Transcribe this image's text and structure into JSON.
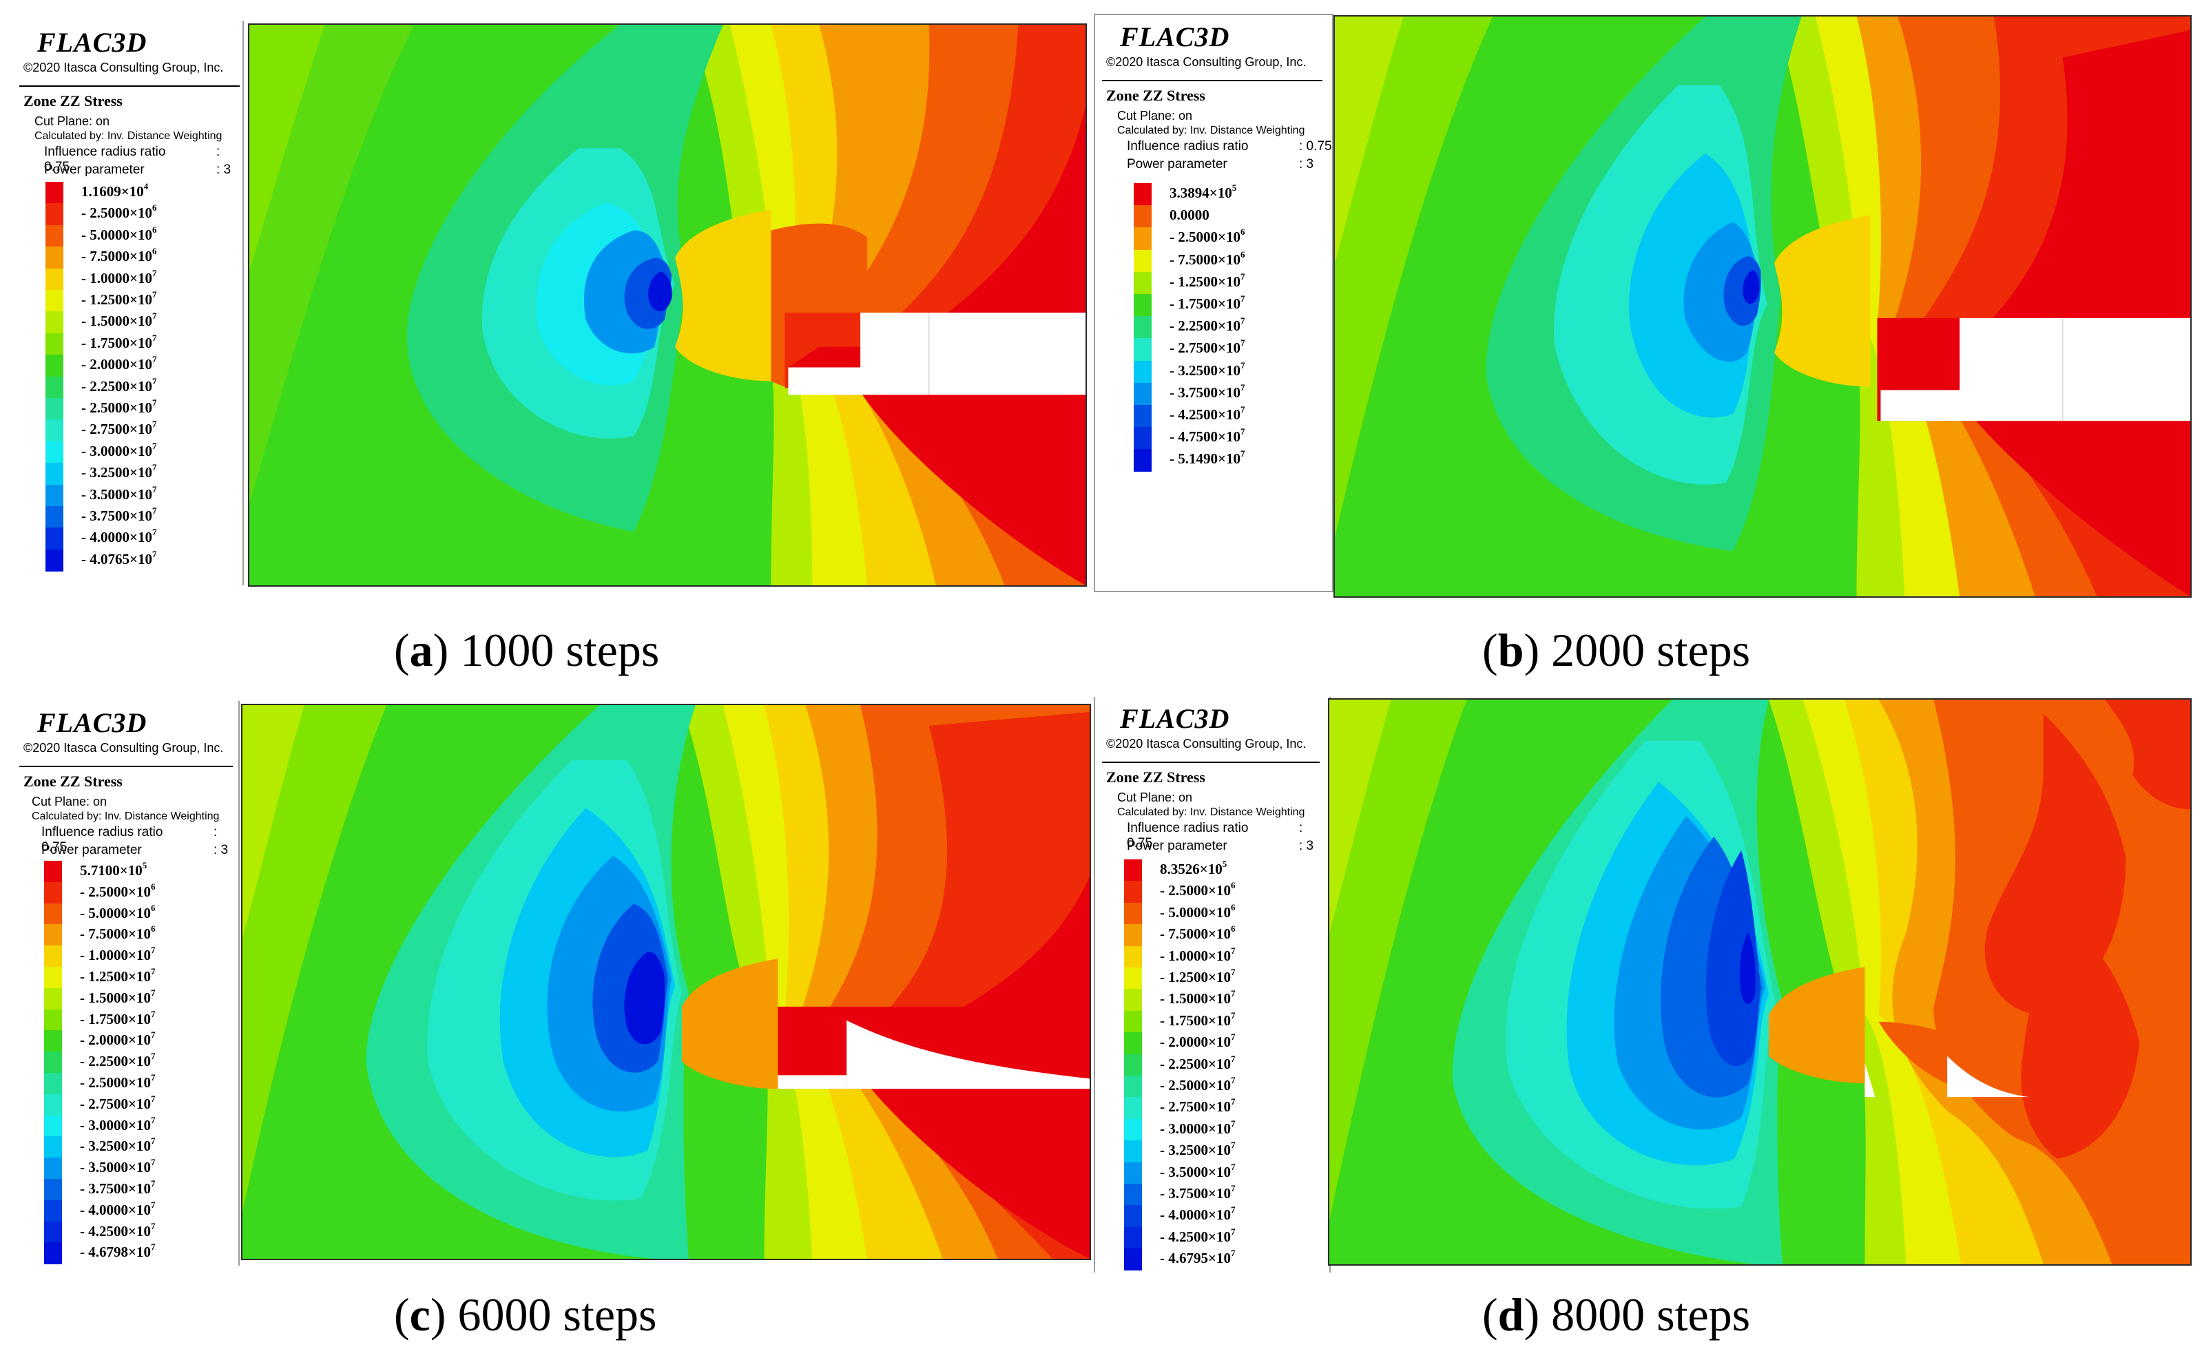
{
  "app": {
    "logo": "FLAC3D",
    "copyright": "©2020 Itasca Consulting Group, Inc."
  },
  "legend_common": {
    "title": "Zone ZZ Stress",
    "cut_plane": "Cut Plane: on",
    "calculated_by": "Calculated by: Inv. Distance Weighting",
    "influence_label": "Influence radius ratio",
    "influence_value": ": 0.75",
    "power_label": "Power parameter",
    "power_value": ": 3"
  },
  "panels": [
    {
      "id": "a",
      "letter": "a",
      "caption_rest": " 1000 steps",
      "levels": [
        {
          "mant": "1.1609",
          "exp": "4",
          "sign": "",
          "color": "#e8000c"
        },
        {
          "mant": "2.5000",
          "exp": "6",
          "sign": "- ",
          "color": "#ee2a08"
        },
        {
          "mant": "5.0000",
          "exp": "6",
          "sign": "- ",
          "color": "#f25a04"
        },
        {
          "mant": "7.5000",
          "exp": "6",
          "sign": "- ",
          "color": "#f59a00"
        },
        {
          "mant": "1.0000",
          "exp": "7",
          "sign": "- ",
          "color": "#f7d400"
        },
        {
          "mant": "1.2500",
          "exp": "7",
          "sign": "- ",
          "color": "#e8f200"
        },
        {
          "mant": "1.5000",
          "exp": "7",
          "sign": "- ",
          "color": "#b4ec00"
        },
        {
          "mant": "1.7500",
          "exp": "7",
          "sign": "- ",
          "color": "#80e400"
        },
        {
          "mant": "2.0000",
          "exp": "7",
          "sign": "- ",
          "color": "#3cd81c"
        },
        {
          "mant": "2.2500",
          "exp": "7",
          "sign": "- ",
          "color": "#28d85a"
        },
        {
          "mant": "2.5000",
          "exp": "7",
          "sign": "- ",
          "color": "#22e099"
        },
        {
          "mant": "2.7500",
          "exp": "7",
          "sign": "- ",
          "color": "#20e8c8"
        },
        {
          "mant": "3.0000",
          "exp": "7",
          "sign": "- ",
          "color": "#12ecf0"
        },
        {
          "mant": "3.2500",
          "exp": "7",
          "sign": "- ",
          "color": "#00c8f4"
        },
        {
          "mant": "3.5000",
          "exp": "7",
          "sign": "- ",
          "color": "#0096f0"
        },
        {
          "mant": "3.7500",
          "exp": "7",
          "sign": "- ",
          "color": "#0064e6"
        },
        {
          "mant": "4.0000",
          "exp": "7",
          "sign": "- ",
          "color": "#0030e0"
        },
        {
          "mant": "4.0765",
          "exp": "7",
          "sign": "- ",
          "color": "#0010dc"
        }
      ]
    },
    {
      "id": "b",
      "letter": "b",
      "caption_rest": " 2000 steps",
      "levels": [
        {
          "mant": "3.3894",
          "exp": "5",
          "sign": "",
          "color": "#e8000c"
        },
        {
          "mant": "0.0000",
          "exp": "",
          "sign": "",
          "color": "#f25a04"
        },
        {
          "mant": "2.5000",
          "exp": "6",
          "sign": "- ",
          "color": "#f59a00"
        },
        {
          "mant": "7.5000",
          "exp": "6",
          "sign": "- ",
          "color": "#e8f200"
        },
        {
          "mant": "1.2500",
          "exp": "7",
          "sign": "- ",
          "color": "#a0ea00"
        },
        {
          "mant": "1.7500",
          "exp": "7",
          "sign": "- ",
          "color": "#3cd81c"
        },
        {
          "mant": "2.2500",
          "exp": "7",
          "sign": "- ",
          "color": "#22dc78"
        },
        {
          "mant": "2.7500",
          "exp": "7",
          "sign": "- ",
          "color": "#20e8c8"
        },
        {
          "mant": "3.2500",
          "exp": "7",
          "sign": "- ",
          "color": "#00c8f4"
        },
        {
          "mant": "3.7500",
          "exp": "7",
          "sign": "- ",
          "color": "#0090f0"
        },
        {
          "mant": "4.2500",
          "exp": "7",
          "sign": "- ",
          "color": "#0050e4"
        },
        {
          "mant": "4.7500",
          "exp": "7",
          "sign": "- ",
          "color": "#0030e0"
        },
        {
          "mant": "5.1490",
          "exp": "7",
          "sign": "- ",
          "color": "#0010dc"
        }
      ]
    },
    {
      "id": "c",
      "letter": "c",
      "caption_rest": " 6000 steps",
      "levels": [
        {
          "mant": "5.7100",
          "exp": "5",
          "sign": "",
          "color": "#e8000c"
        },
        {
          "mant": "2.5000",
          "exp": "6",
          "sign": "- ",
          "color": "#ee2a08"
        },
        {
          "mant": "5.0000",
          "exp": "6",
          "sign": "- ",
          "color": "#f25a04"
        },
        {
          "mant": "7.5000",
          "exp": "6",
          "sign": "- ",
          "color": "#f59a00"
        },
        {
          "mant": "1.0000",
          "exp": "7",
          "sign": "- ",
          "color": "#f7d400"
        },
        {
          "mant": "1.2500",
          "exp": "7",
          "sign": "- ",
          "color": "#e8f200"
        },
        {
          "mant": "1.5000",
          "exp": "7",
          "sign": "- ",
          "color": "#b4ec00"
        },
        {
          "mant": "1.7500",
          "exp": "7",
          "sign": "- ",
          "color": "#80e400"
        },
        {
          "mant": "2.0000",
          "exp": "7",
          "sign": "- ",
          "color": "#3cd81c"
        },
        {
          "mant": "2.2500",
          "exp": "7",
          "sign": "- ",
          "color": "#28d85a"
        },
        {
          "mant": "2.5000",
          "exp": "7",
          "sign": "- ",
          "color": "#22e099"
        },
        {
          "mant": "2.7500",
          "exp": "7",
          "sign": "- ",
          "color": "#20e8c8"
        },
        {
          "mant": "3.0000",
          "exp": "7",
          "sign": "- ",
          "color": "#12ecf0"
        },
        {
          "mant": "3.2500",
          "exp": "7",
          "sign": "- ",
          "color": "#00c8f4"
        },
        {
          "mant": "3.5000",
          "exp": "7",
          "sign": "- ",
          "color": "#0096f0"
        },
        {
          "mant": "3.7500",
          "exp": "7",
          "sign": "- ",
          "color": "#0064e6"
        },
        {
          "mant": "4.0000",
          "exp": "7",
          "sign": "- ",
          "color": "#0040e2"
        },
        {
          "mant": "4.2500",
          "exp": "7",
          "sign": "- ",
          "color": "#0028de"
        },
        {
          "mant": "4.6798",
          "exp": "7",
          "sign": "- ",
          "color": "#0010dc"
        }
      ]
    },
    {
      "id": "d",
      "letter": "d",
      "caption_rest": " 8000 steps",
      "levels": [
        {
          "mant": "8.3526",
          "exp": "5",
          "sign": "",
          "color": "#e8000c"
        },
        {
          "mant": "2.5000",
          "exp": "6",
          "sign": "- ",
          "color": "#ee2a08"
        },
        {
          "mant": "5.0000",
          "exp": "6",
          "sign": "- ",
          "color": "#f25a04"
        },
        {
          "mant": "7.5000",
          "exp": "6",
          "sign": "- ",
          "color": "#f59a00"
        },
        {
          "mant": "1.0000",
          "exp": "7",
          "sign": "- ",
          "color": "#f7d400"
        },
        {
          "mant": "1.2500",
          "exp": "7",
          "sign": "- ",
          "color": "#e8f200"
        },
        {
          "mant": "1.5000",
          "exp": "7",
          "sign": "- ",
          "color": "#b4ec00"
        },
        {
          "mant": "1.7500",
          "exp": "7",
          "sign": "- ",
          "color": "#80e400"
        },
        {
          "mant": "2.0000",
          "exp": "7",
          "sign": "- ",
          "color": "#3cd81c"
        },
        {
          "mant": "2.2500",
          "exp": "7",
          "sign": "- ",
          "color": "#28d85a"
        },
        {
          "mant": "2.5000",
          "exp": "7",
          "sign": "- ",
          "color": "#22e099"
        },
        {
          "mant": "2.7500",
          "exp": "7",
          "sign": "- ",
          "color": "#20e8c8"
        },
        {
          "mant": "3.0000",
          "exp": "7",
          "sign": "- ",
          "color": "#12ecf0"
        },
        {
          "mant": "3.2500",
          "exp": "7",
          "sign": "- ",
          "color": "#00c8f4"
        },
        {
          "mant": "3.5000",
          "exp": "7",
          "sign": "- ",
          "color": "#0096f0"
        },
        {
          "mant": "3.7500",
          "exp": "7",
          "sign": "- ",
          "color": "#0064e6"
        },
        {
          "mant": "4.0000",
          "exp": "7",
          "sign": "- ",
          "color": "#0040e2"
        },
        {
          "mant": "4.2500",
          "exp": "7",
          "sign": "- ",
          "color": "#0028de"
        },
        {
          "mant": "4.6795",
          "exp": "7",
          "sign": "- ",
          "color": "#0010dc"
        }
      ]
    }
  ]
}
